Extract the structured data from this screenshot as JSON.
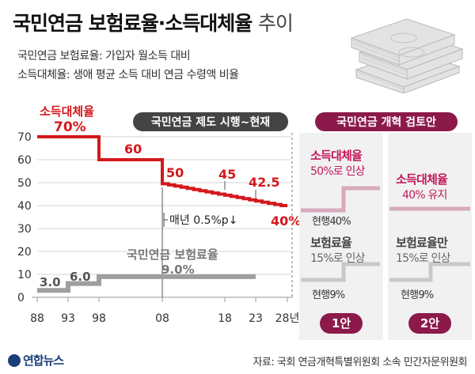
{
  "header": {
    "title_main": "국민연금 보험료율·소득대체율",
    "title_suffix": "추이",
    "note_contribution": "국민연금 보험료율: 가입자 월소득 대비",
    "note_replacement": "소득대체율: 생애 평균 소득 대비 연금 수령액 비율"
  },
  "chart_data": {
    "type": "line",
    "x_ticks": [
      "88",
      "93",
      "98",
      "08",
      "18",
      "23",
      "28년"
    ],
    "y_ticks": [
      "0",
      "10",
      "20",
      "30",
      "40",
      "50",
      "60",
      "70"
    ],
    "ylim": [
      0,
      70
    ],
    "series": [
      {
        "name": "소득대체율",
        "color": "#d4181c",
        "points": [
          [
            1988,
            70
          ],
          [
            1998,
            70
          ],
          [
            1998,
            60
          ],
          [
            2008,
            60
          ],
          [
            2008,
            50
          ],
          [
            2028,
            40
          ]
        ],
        "labels": [
          "70%",
          "60",
          "50",
          "45",
          "42.5",
          "40%"
        ]
      },
      {
        "name": "국민연금 보험료율",
        "color": "#9e9e9e",
        "points": [
          [
            1988,
            3
          ],
          [
            1993,
            3
          ],
          [
            1993,
            6
          ],
          [
            1998,
            6
          ],
          [
            1998,
            9
          ],
          [
            2023,
            9
          ]
        ],
        "labels": [
          "3.0",
          "6.0",
          "9.0%"
        ]
      }
    ],
    "annotations": {
      "current_system": "국민연금 제도 시행~현재",
      "annual_decrease": "매년 0.5%p↓",
      "reform_review": "국민연금 개혁 검토안"
    }
  },
  "plans": [
    {
      "badge": "1안",
      "replacement_title": "소득대체율",
      "replacement_change": "50%로 인상",
      "replacement_current": "현행40%",
      "contribution_title": "보험료율",
      "contribution_change": "15%로 인상",
      "contribution_current": "현행9%"
    },
    {
      "badge": "2안",
      "replacement_title": "소득대체율",
      "replacement_change": "40% 유지",
      "contribution_title": "보험료율만",
      "contribution_change": "15%로 인상",
      "contribution_current": "현행9%"
    }
  ],
  "footer": {
    "logo": "연합뉴스",
    "source": "자료: 국회 연금개혁특별위원회 소속 민간자문위원회"
  },
  "colors": {
    "red": "#d4181c",
    "gray": "#9e9e9e",
    "plum": "#8b1a4a",
    "dark_label": "#555555"
  }
}
